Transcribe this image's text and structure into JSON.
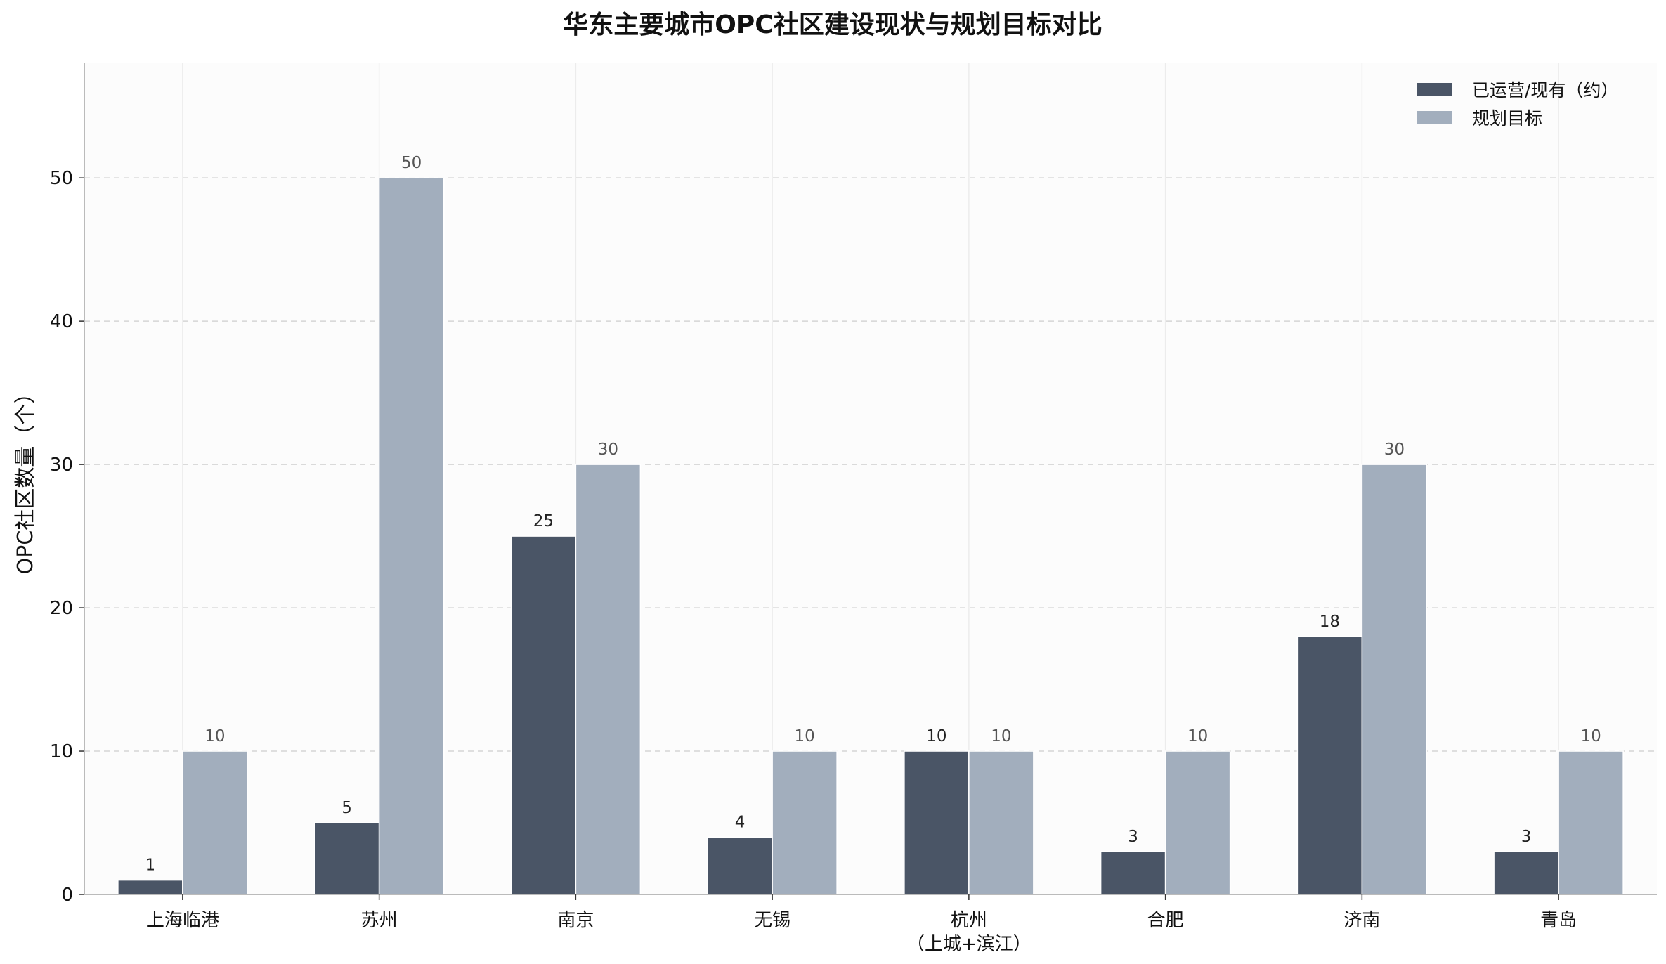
{
  "chart_data": {
    "type": "bar",
    "title": "华东主要城市OPC社区建设现状与规划目标对比",
    "xlabel": "",
    "ylabel": "OPC社区数量（个）",
    "categories": [
      "上海临港",
      "苏州",
      "南京",
      "无锡",
      "杭州\n（上城+滨江）",
      "合肥",
      "济南",
      "青岛"
    ],
    "series": [
      {
        "name": "已运营/现有（约）",
        "color": "#4a5566",
        "values": [
          1,
          5,
          25,
          4,
          10,
          3,
          18,
          3
        ]
      },
      {
        "name": "规划目标",
        "color": "#a2aebd",
        "values": [
          10,
          50,
          30,
          10,
          10,
          10,
          30,
          10
        ]
      }
    ],
    "ylim": [
      0,
      58
    ],
    "yticks": [
      0,
      10,
      20,
      30,
      40,
      50
    ],
    "grid": true,
    "legend": "top-right",
    "colors": {
      "plot_background": "#fcfcfc",
      "grid": "#d5d5d5",
      "axis": "#bbbbbb"
    }
  }
}
